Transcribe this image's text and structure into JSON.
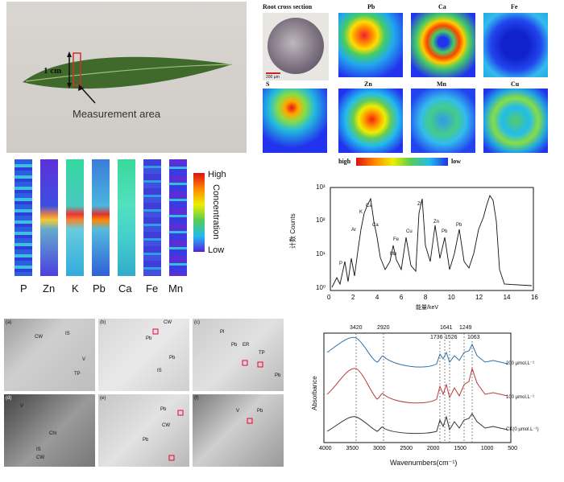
{
  "leaf_panel": {
    "dim_label": "1 cm",
    "measurement_label": "Measurement area"
  },
  "root_panel": {
    "title": "Root cross section",
    "scale": "200 µm",
    "maps": [
      {
        "label": "Pb"
      },
      {
        "label": "Ca"
      },
      {
        "label": "Fe"
      },
      {
        "label": "S"
      },
      {
        "label": "Zn"
      },
      {
        "label": "Mn"
      },
      {
        "label": "Cu"
      }
    ],
    "bar_high": "high",
    "bar_low": "low"
  },
  "strip_panel": {
    "elements": [
      "P",
      "Zn",
      "K",
      "Pb",
      "Ca",
      "Fe",
      "Mn"
    ],
    "legend_high": "High",
    "legend_title": "Concentration",
    "legend_low": "Low"
  },
  "xrf_chart": {
    "ylabel": "计数 Counts",
    "xlabel": "能量/keV",
    "yticks": [
      "10⁰",
      "10¹",
      "10²",
      "10³"
    ],
    "xticks": [
      "0",
      "2",
      "4",
      "6",
      "8",
      "10",
      "12",
      "14",
      "16"
    ],
    "peaks": [
      "P",
      "Ar",
      "K",
      "Ca",
      "Ca",
      "Mn",
      "Fe",
      "Cu",
      "Zn",
      "Zn",
      "Pb",
      "Pb"
    ]
  },
  "tem_panel": {
    "tiles": [
      {
        "tag": "(a)",
        "labels": [
          "CW",
          "IS",
          "V",
          "TP"
        ]
      },
      {
        "tag": "(b)",
        "labels": [
          "CW",
          "Pb",
          "Pb",
          "IS"
        ]
      },
      {
        "tag": "(c)",
        "labels": [
          "Pl",
          "Pb",
          "ER",
          "TP",
          "Pb"
        ]
      },
      {
        "tag": "(d)",
        "labels": [
          "V",
          "Chl",
          "IS",
          "CW"
        ]
      },
      {
        "tag": "(e)",
        "labels": [
          "Pb",
          "CW",
          "Pb"
        ]
      },
      {
        "tag": "(f)",
        "labels": [
          "V",
          "Pb"
        ]
      }
    ]
  },
  "ftir_chart": {
    "ylabel": "Absorbance",
    "xlabel": "Wavenumbers(cm⁻¹)",
    "xticks": [
      "4000",
      "3500",
      "3000",
      "2500",
      "2000",
      "1500",
      "1000",
      "500"
    ],
    "peak_labels": [
      "3420",
      "2920",
      "1736",
      "1641",
      "1526",
      "1249",
      "1063"
    ],
    "series": [
      {
        "name": "200 μmol.L⁻¹",
        "color": "#2f6fa8"
      },
      {
        "name": "100 μmol.L⁻¹",
        "color": "#b83a3a"
      },
      {
        "name": "CK(0 μmol.L⁻¹)",
        "color": "#333333"
      }
    ]
  }
}
